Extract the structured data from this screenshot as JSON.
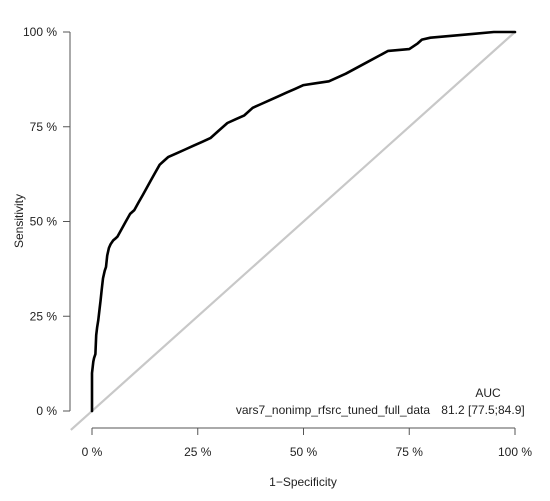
{
  "chart_data": {
    "type": "line",
    "title": "",
    "xlabel": "1−Specificity",
    "ylabel": "Sensitivity",
    "xlim": [
      0,
      100
    ],
    "ylim": [
      0,
      100
    ],
    "xticks": [
      0,
      25,
      50,
      75,
      100
    ],
    "yticks": [
      0,
      25,
      50,
      75,
      100
    ],
    "xtick_labels": [
      "0 %",
      "25 %",
      "50 %",
      "75 %",
      "100 %"
    ],
    "ytick_labels": [
      "0 %",
      "25 %",
      "50 %",
      "75 %",
      "100 %"
    ],
    "grid": false,
    "legend": {
      "placement": "bottom-right",
      "header": "AUC",
      "entries": [
        {
          "model": "vars7_nonimp_rfsrc_tuned_full_data",
          "auc": "81.2 [77.5;84.9]"
        }
      ]
    },
    "colors": {
      "roc": "#000000",
      "reference": "#c8c8c8",
      "axis": "#555555"
    },
    "reference_line": {
      "x": [
        0,
        100
      ],
      "y": [
        0,
        100
      ]
    },
    "series": [
      {
        "x": [
          0,
          0,
          0.3,
          0.5,
          0.8,
          1.0,
          1.2,
          1.5,
          1.8,
          2.0,
          2.3,
          2.6,
          3.0,
          3.3,
          3.6,
          4.0,
          4.4,
          5.0,
          5.5,
          6.0,
          7.0,
          8.0,
          9.0,
          10.0,
          11.0,
          12.0,
          13.0,
          14.0,
          14.5,
          15.0,
          16.0,
          17.0,
          18.0,
          20.0,
          22.0,
          24.0,
          26.0,
          28.0,
          30.0,
          32.0,
          34.0,
          36.0,
          38.0,
          40.0,
          42.0,
          44.0,
          46.0,
          48.0,
          50.0,
          53.0,
          56.0,
          60.0,
          65.0,
          70.0,
          72.0,
          75.0,
          77.0,
          78.0,
          80.0,
          85.0,
          90.0,
          95.0,
          100.0
        ],
        "y": [
          0,
          10,
          13,
          14,
          15,
          20,
          22,
          24,
          27,
          29,
          32,
          35,
          37,
          38,
          41,
          43,
          44,
          45,
          45.5,
          46,
          48,
          50,
          52,
          53,
          55,
          57,
          59,
          61,
          62,
          63,
          65,
          66,
          67,
          68,
          69,
          70,
          71,
          72,
          74,
          76,
          77,
          78,
          80,
          81,
          82,
          83,
          84,
          85,
          86,
          86.5,
          87,
          89,
          92,
          95,
          95.2,
          95.5,
          97,
          98,
          98.5,
          99,
          99.5,
          100,
          100
        ]
      }
    ]
  }
}
